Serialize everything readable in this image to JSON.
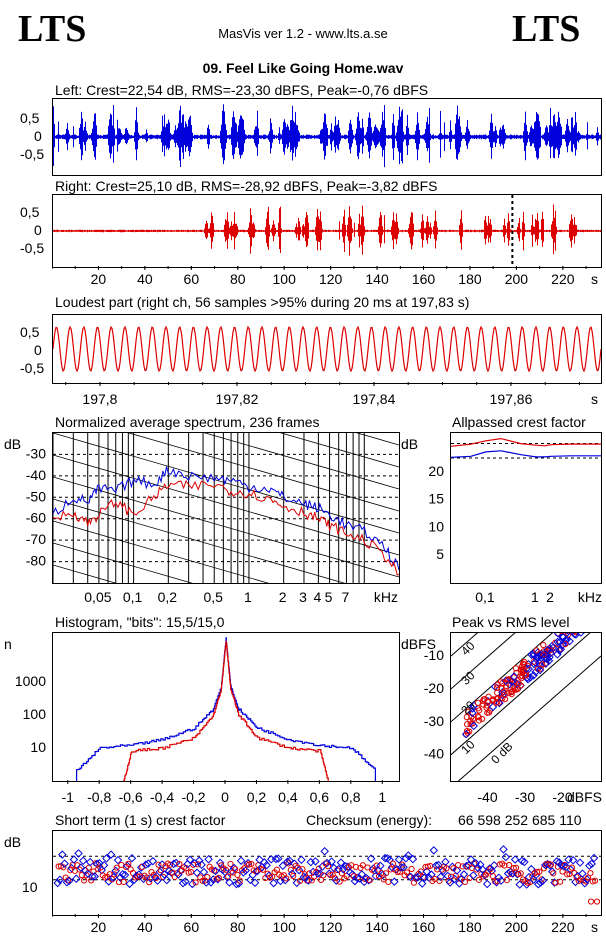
{
  "header": {
    "logo_left": "LTS",
    "logo_right": "LTS",
    "app_title": "MasVis ver 1.2 - www.lts.a.se",
    "file_title": "09. Feel Like Going Home.wav"
  },
  "colors": {
    "left": "#0000dd",
    "right": "#dd0000",
    "axis": "#000000"
  },
  "waveform_left": {
    "title": "Left: Crest=22,54 dB, RMS=-23,30 dBFS, Peak=-0,76 dBFS",
    "ytick_labels": [
      "0,5",
      "0",
      "-0,5"
    ]
  },
  "waveform_right": {
    "title": "Right: Crest=25,10 dB, RMS=-28,92 dBFS, Peak=-3,82 dBFS",
    "ytick_labels": [
      "0,5",
      "0",
      "-0,5"
    ],
    "time_ticks": [
      "20",
      "40",
      "60",
      "80",
      "100",
      "120",
      "140",
      "160",
      "180",
      "200",
      "220"
    ],
    "time_unit": "s"
  },
  "loudest": {
    "title": "Loudest part (right ch, 56 samples >95% during 20 ms at 197,83 s)",
    "ytick_labels": [
      "0,5",
      "0",
      "-0,5"
    ],
    "time_ticks": [
      "197,8",
      "197,82",
      "197,84",
      "197,86"
    ],
    "time_unit": "s"
  },
  "spectrum": {
    "title": "Normalized average spectrum, 236 frames",
    "ylabel": "dB",
    "ytick_labels": [
      "-30",
      "-40",
      "-50",
      "-60",
      "-70",
      "-80"
    ],
    "xtick_labels": [
      "0,05",
      "0,1",
      "0,2",
      "0,5",
      "1",
      "2",
      "3",
      "4",
      "5",
      "7"
    ],
    "xunit": "kHz"
  },
  "allpassed": {
    "title": "Allpassed crest factor",
    "ylabel": "dB",
    "ytick_labels": [
      "20",
      "15",
      "10",
      "5"
    ],
    "xtick_labels": [
      "0,1",
      "1",
      "2"
    ],
    "xunit": "kHz"
  },
  "histogram": {
    "title": "Histogram, \"bits\": 15,5/15,0",
    "ylabel": "n",
    "ytick_labels": [
      "1000",
      "100",
      "10"
    ],
    "xtick_labels": [
      "-1",
      "-0,8",
      "-0,6",
      "-0,4",
      "-0,2",
      "0",
      "0,2",
      "0,4",
      "0,6",
      "0,8",
      "1"
    ]
  },
  "peak_rms": {
    "title": "Peak vs RMS level",
    "ylabel": "dBFS",
    "ytick_labels": [
      "-10",
      "-20",
      "-30",
      "-40"
    ],
    "xtick_labels": [
      "-40",
      "-30",
      "-20"
    ],
    "xunit": "dBFS",
    "diag_labels": [
      "40",
      "30",
      "20",
      "10",
      "0 dB"
    ]
  },
  "short_crest": {
    "title": "Short term (1 s) crest factor",
    "checksum_label": "Checksum (energy):",
    "checksum_value": "66 598 252 685 110",
    "ylabel": "dB",
    "ytick_labels": [
      "10"
    ],
    "time_ticks": [
      "20",
      "40",
      "60",
      "80",
      "100",
      "120",
      "140",
      "160",
      "180",
      "200",
      "220"
    ],
    "time_unit": "s"
  },
  "chart_data": [
    {
      "type": "line",
      "title": "Left: Crest=22,54 dB, RMS=-23,30 dBFS, Peak=-0,76 dBFS",
      "xlabel": "",
      "ylabel": "",
      "ylim": [
        -1,
        1
      ],
      "xlim": [
        0,
        236
      ],
      "series": [
        {
          "values": []
        }
      ]
    },
    {
      "type": "line",
      "title": "Right: Crest=25,10 dB, RMS=-28,92 dBFS, Peak=-3,82 dBFS",
      "xlabel": "s",
      "ylabel": "",
      "ylim": [
        -1,
        1
      ],
      "xlim": [
        0,
        236
      ],
      "marker_s": 197.83,
      "series": [
        {
          "values": []
        }
      ]
    },
    {
      "type": "line",
      "title": "Loudest part (right ch, 56 samples >95% during 20 ms at 197,83 s)",
      "xlabel": "s",
      "ylabel": "",
      "xlim": [
        197.793,
        197.873
      ],
      "ylim": [
        -0.9,
        0.9
      ],
      "cycles": 40,
      "amplitude": 0.6
    },
    {
      "type": "line",
      "title": "Normalized average spectrum, 236 frames",
      "xlabel": "kHz",
      "ylabel": "dB",
      "xlim_khz": [
        0.02,
        20
      ],
      "ylim": [
        -90,
        -20
      ],
      "series": [
        {
          "freq_khz": [
            0.02,
            0.03,
            0.04,
            0.05,
            0.07,
            0.1,
            0.15,
            0.2,
            0.3,
            0.5,
            0.7,
            1,
            1.5,
            2,
            3,
            4,
            5,
            7,
            10,
            15,
            20
          ],
          "db": [
            -58,
            -50,
            -52,
            -46,
            -47,
            -42,
            -44,
            -37,
            -40,
            -41,
            -42,
            -45,
            -46,
            -50,
            -53,
            -55,
            -58,
            -63,
            -66,
            -73,
            -84
          ]
        },
        {
          "freq_khz": [
            0.02,
            0.03,
            0.04,
            0.05,
            0.07,
            0.1,
            0.15,
            0.2,
            0.3,
            0.5,
            0.7,
            1,
            1.5,
            2,
            3,
            4,
            5,
            7,
            10,
            15,
            20
          ],
          "db": [
            -60,
            -57,
            -62,
            -58,
            -52,
            -58,
            -50,
            -44,
            -45,
            -44,
            -47,
            -48,
            -51,
            -54,
            -57,
            -60,
            -63,
            -67,
            -70,
            -77,
            -86
          ]
        }
      ]
    },
    {
      "type": "line",
      "title": "Allpassed crest factor",
      "xlabel": "kHz",
      "ylabel": "dB",
      "xlim_khz": [
        0.02,
        20
      ],
      "ylim": [
        0,
        27
      ],
      "series": [
        {
          "freq_khz": [
            0.02,
            0.05,
            0.1,
            0.2,
            0.5,
            1,
            1.5,
            2,
            5,
            20
          ],
          "db": [
            22.6,
            22.8,
            23.6,
            23.8,
            23.1,
            22.7,
            22.7,
            22.8,
            22.9,
            22.9
          ]
        },
        {
          "freq_khz": [
            0.02,
            0.05,
            0.1,
            0.2,
            0.5,
            1,
            1.5,
            2,
            5,
            20
          ],
          "db": [
            24.6,
            25.0,
            25.6,
            26.0,
            25.1,
            24.8,
            24.7,
            24.9,
            25.0,
            25.0
          ]
        }
      ],
      "reference_lines_db": [
        22.5,
        25.1
      ]
    },
    {
      "type": "line",
      "title": "Histogram, \"bits\": 15,5/15,0",
      "xlabel": "",
      "ylabel": "n",
      "xlim": [
        -1.1,
        1.1
      ],
      "ylog_range": [
        1,
        30000
      ],
      "series": [
        {
          "x": [
            -0.95,
            -0.8,
            -0.6,
            -0.4,
            -0.2,
            -0.08,
            -0.03,
            0,
            0.03,
            0.08,
            0.2,
            0.4,
            0.6,
            0.8,
            0.95
          ],
          "count": [
            2,
            10,
            12,
            18,
            40,
            150,
            700,
            20000,
            700,
            150,
            40,
            18,
            12,
            10,
            2
          ]
        },
        {
          "x": [
            -0.65,
            -0.6,
            -0.4,
            -0.2,
            -0.08,
            -0.03,
            0,
            0.03,
            0.08,
            0.2,
            0.4,
            0.6,
            0.65
          ],
          "count": [
            1,
            8,
            10,
            20,
            100,
            600,
            18000,
            600,
            100,
            20,
            10,
            8,
            1
          ]
        }
      ]
    },
    {
      "type": "scatter",
      "title": "Peak vs RMS level",
      "xlabel": "dBFS",
      "ylabel": "dBFS",
      "xlim": [
        -50,
        -10
      ],
      "ylim": [
        -48,
        -3
      ],
      "diagonal_crest_db": [
        0,
        10,
        20,
        30,
        40
      ],
      "series": [
        {
          "x": [],
          "y": []
        },
        {
          "x": [],
          "y": []
        }
      ]
    },
    {
      "type": "scatter",
      "title": "Short term (1 s) crest factor",
      "xlabel": "s",
      "ylabel": "dB",
      "xlim": [
        0,
        236
      ],
      "ylim": [
        0,
        25
      ],
      "reference_lines_db": [
        17.5,
        10.5
      ],
      "series": [
        {
          "x": [],
          "y": []
        },
        {
          "x": [],
          "y": []
        }
      ]
    }
  ]
}
